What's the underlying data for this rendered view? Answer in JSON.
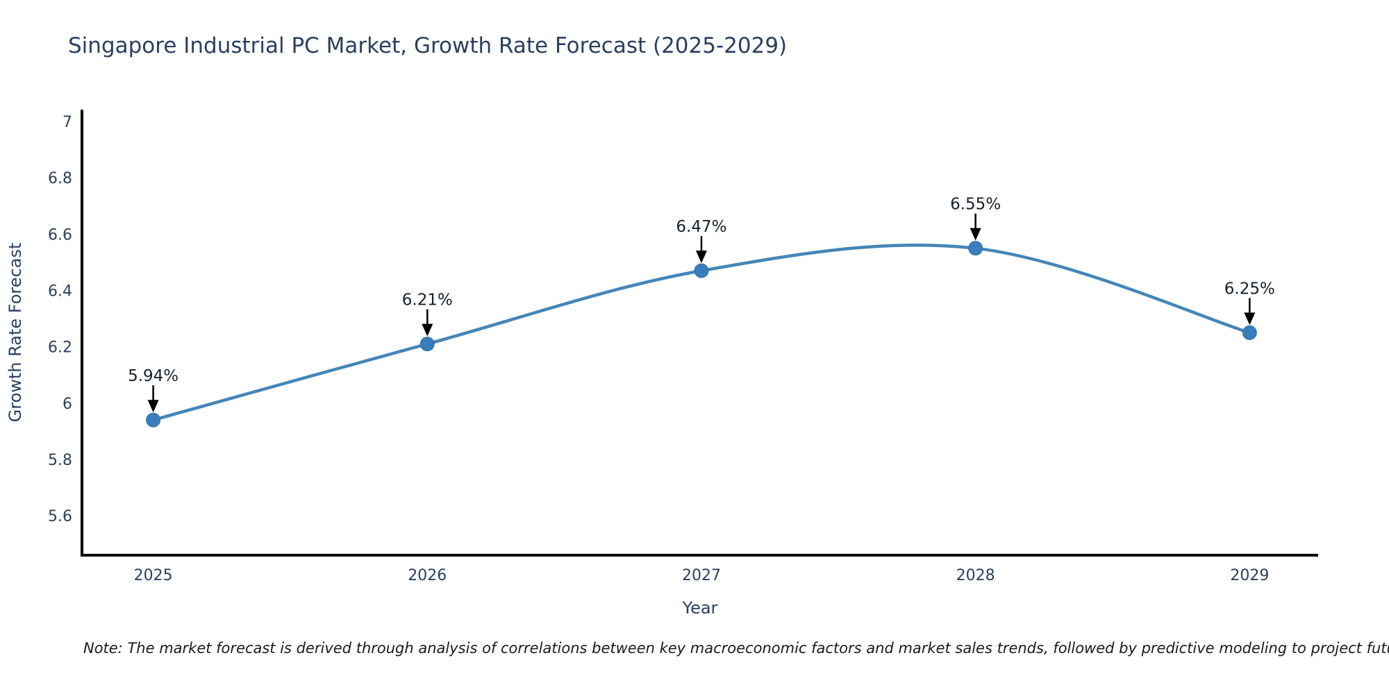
{
  "header": {
    "title": "Singapore Industrial PC Market, Growth Rate Forecast (2025-2029)"
  },
  "footer": {
    "note": "Note: The market forecast is derived through analysis of correlations between key macroeconomic factors and market sales trends, followed by predictive modeling to project future sales."
  },
  "chart_data": {
    "type": "line",
    "title": "Singapore Industrial PC Market, Growth Rate Forecast (2025-2029)",
    "xlabel": "Year",
    "ylabel": "Growth Rate Forecast",
    "x": [
      2025,
      2026,
      2027,
      2028,
      2029
    ],
    "values": [
      5.94,
      6.21,
      6.47,
      6.55,
      6.25
    ],
    "point_labels": [
      "5.94%",
      "6.21%",
      "6.47%",
      "6.55%",
      "6.25%"
    ],
    "x_ticks": [
      "2025",
      "2026",
      "2027",
      "2028",
      "2029"
    ],
    "y_ticks": [
      5.6,
      5.8,
      6,
      6.2,
      6.4,
      6.6,
      6.8,
      7
    ],
    "xlim": [
      2024.74,
      2029.25
    ],
    "ylim": [
      5.46,
      7.042
    ],
    "line_shape": "spline",
    "grid": false,
    "legend": "none",
    "colors": {
      "line": "#4486b8",
      "marker_fill": "#3a7dbe",
      "marker_edge": "#35719f",
      "axis_line": "#000000",
      "tick_text": "#2a3f5f",
      "axis_title_text": "#2a3f5f",
      "annotation_text": "#16202c",
      "arrow": "#000000",
      "background": "#ffffff"
    }
  }
}
